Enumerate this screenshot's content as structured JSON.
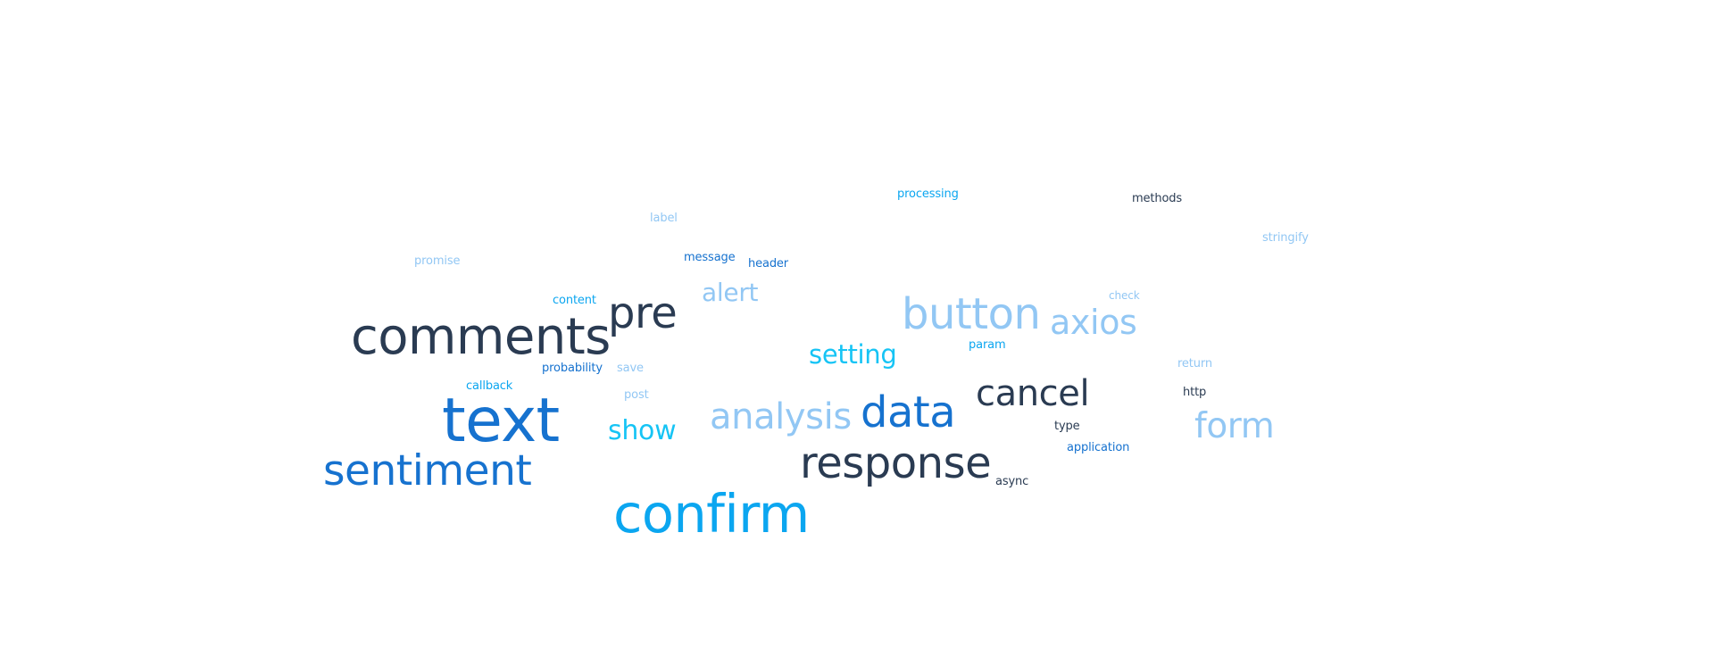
{
  "words": {
    "comments": {
      "text": "comments",
      "color": "#2a3b52"
    },
    "text": {
      "text": "text",
      "color": "#1672cf"
    },
    "sentiment": {
      "text": "sentiment",
      "color": "#1672cf"
    },
    "confirm": {
      "text": "confirm",
      "color": "#0ba6f0"
    },
    "response": {
      "text": "response",
      "color": "#2a3b52"
    },
    "data": {
      "text": "data",
      "color": "#1672cf"
    },
    "button": {
      "text": "button",
      "color": "#92c7f4"
    },
    "cancel": {
      "text": "cancel",
      "color": "#2a3b52"
    },
    "analysis": {
      "text": "analysis",
      "color": "#92c7f4"
    },
    "pre": {
      "text": "pre",
      "color": "#2a3b52"
    },
    "axios": {
      "text": "axios",
      "color": "#92c7f4"
    },
    "form": {
      "text": "form",
      "color": "#92c7f4"
    },
    "setting": {
      "text": "setting",
      "color": "#16c4f5"
    },
    "show": {
      "text": "show",
      "color": "#16c4f5"
    },
    "alert": {
      "text": "alert",
      "color": "#92c7f4"
    },
    "processing": {
      "text": "processing",
      "color": "#0ba6f0"
    },
    "methods": {
      "text": "methods",
      "color": "#2a3b52"
    },
    "stringify": {
      "text": "stringify",
      "color": "#92c7f4"
    },
    "label": {
      "text": "label",
      "color": "#92c7f4"
    },
    "promise": {
      "text": "promise",
      "color": "#92c7f4"
    },
    "message": {
      "text": "message",
      "color": "#1672cf"
    },
    "header": {
      "text": "header",
      "color": "#1672cf"
    },
    "content": {
      "text": "content",
      "color": "#0ba6f0"
    },
    "check": {
      "text": "check",
      "color": "#92c7f4"
    },
    "param": {
      "text": "param",
      "color": "#0ba6f0"
    },
    "return": {
      "text": "return",
      "color": "#92c7f4"
    },
    "probability": {
      "text": "probability",
      "color": "#1672cf"
    },
    "save": {
      "text": "save",
      "color": "#92c7f4"
    },
    "callback": {
      "text": "callback",
      "color": "#0ba6f0"
    },
    "post": {
      "text": "post",
      "color": "#92c7f4"
    },
    "http": {
      "text": "http",
      "color": "#2a3b52"
    },
    "type": {
      "text": "type",
      "color": "#2a3b52"
    },
    "application": {
      "text": "application",
      "color": "#1672cf"
    },
    "async": {
      "text": "async",
      "color": "#2a3b52"
    }
  }
}
